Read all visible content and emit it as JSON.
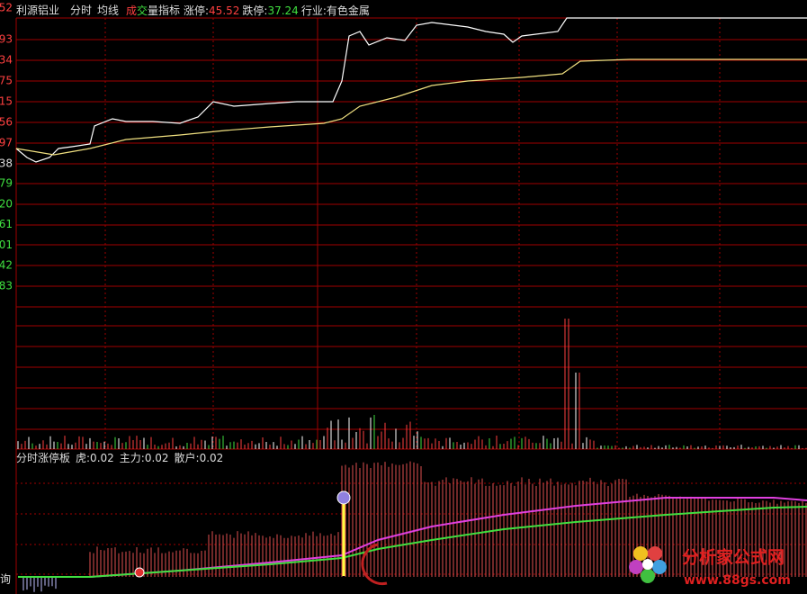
{
  "header": {
    "stock": "利源铝业",
    "tabs": [
      "分时",
      "均线"
    ],
    "volume_tab": [
      "成",
      "交",
      "量"
    ],
    "indicator_tab": "指标",
    "limit_up_label": "涨停:",
    "limit_up": "45.52",
    "limit_down_label": "跌停:",
    "limit_down": "37.24",
    "industry_label": "行业:",
    "industry": "有色金属"
  },
  "price_axis": {
    "upper": [
      "52",
      "93",
      "34",
      "75",
      "15",
      "56",
      "97"
    ],
    "middle": "38",
    "lower": [
      "79",
      "20",
      "61",
      "01",
      "42",
      "83"
    ]
  },
  "indicator": {
    "name": "分时涨停板",
    "items": [
      "虎:0.02",
      "主力:0.02",
      "散户:0.02"
    ]
  },
  "side_label": "询",
  "watermark": {
    "name": "分析家公式网",
    "url": "www.88gs.com"
  }
}
